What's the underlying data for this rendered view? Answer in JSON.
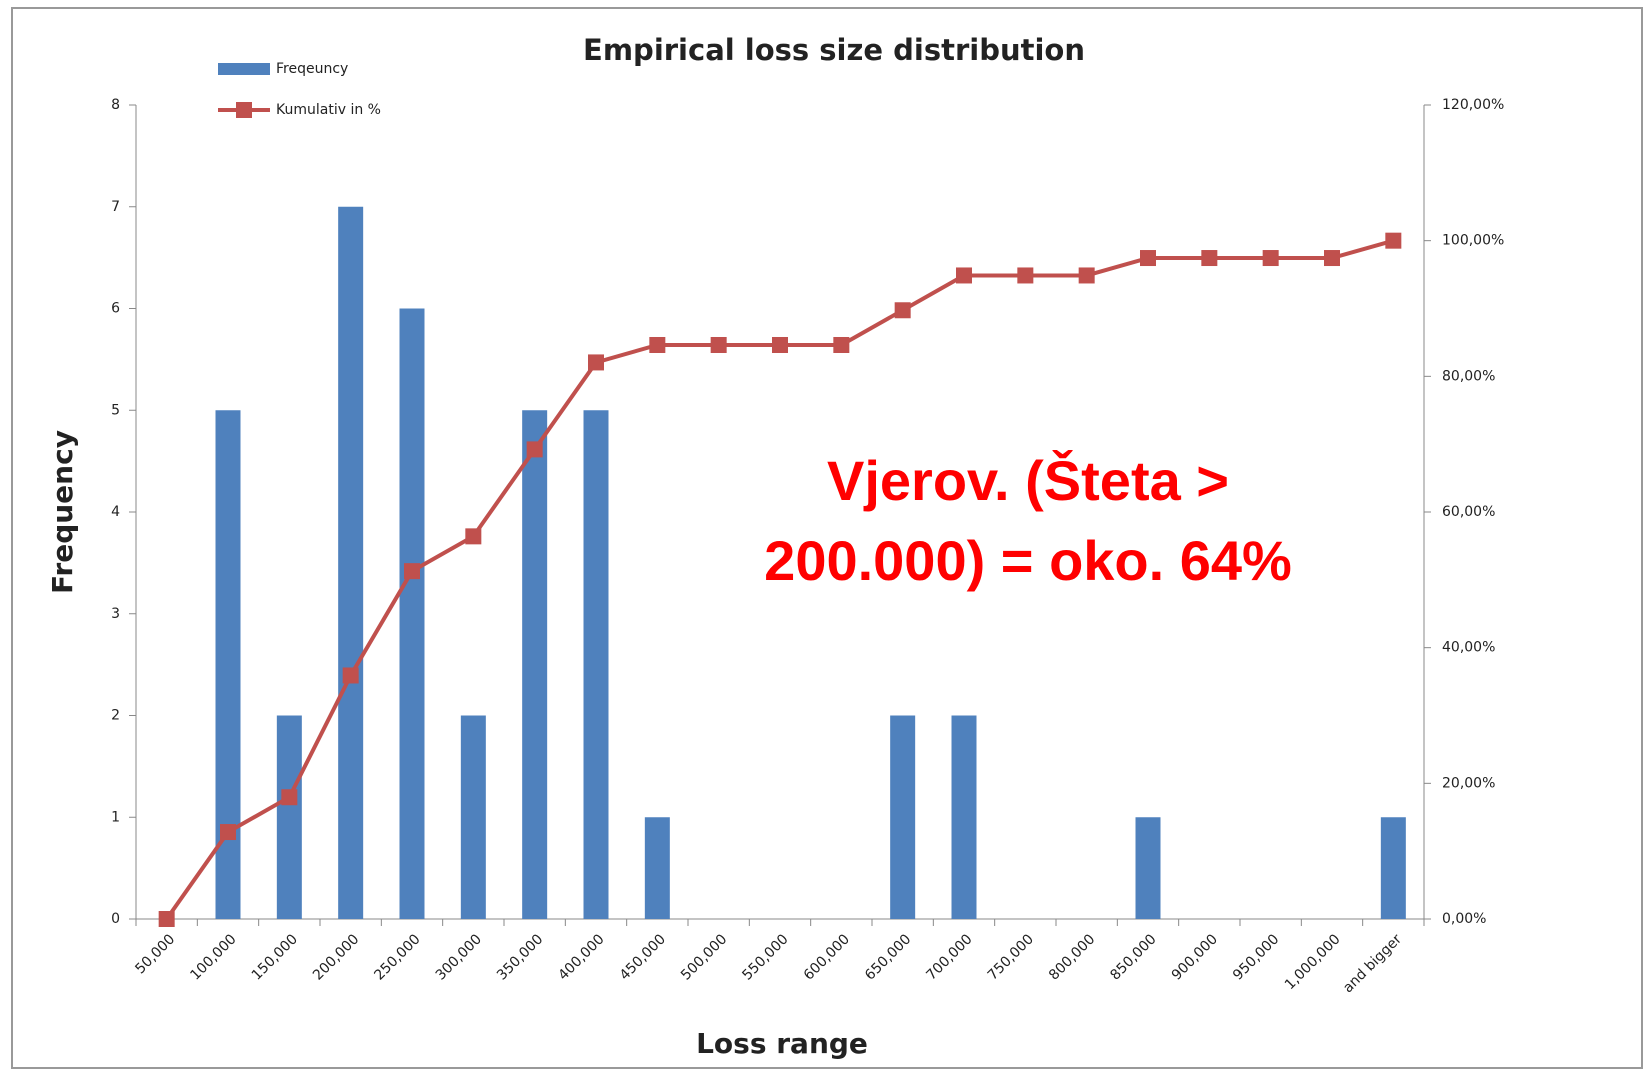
{
  "chart_data": {
    "type": "bar_line",
    "title": "Empirical loss size distribution",
    "x_label": "Loss range",
    "y_label": "Frequency",
    "annotation": [
      "Vjerov. (Šteta >",
      "200.000) = oko. 64%"
    ],
    "categories": [
      "50,000",
      "100,000",
      "150,000",
      "200,000",
      "250,000",
      "300,000",
      "350,000",
      "400,000",
      "450,000",
      "500,000",
      "550,000",
      "600,000",
      "650,000",
      "700,000",
      "750,000",
      "800,000",
      "850,000",
      "900,000",
      "950,000",
      "1,000,000",
      "and bigger"
    ],
    "series": [
      {
        "name": "Freqeuncy",
        "type": "bar",
        "color": "#4f81bd",
        "axis": "y",
        "values": [
          0,
          5,
          2,
          7,
          6,
          2,
          5,
          5,
          1,
          0,
          0,
          0,
          2,
          2,
          0,
          0,
          1,
          0,
          0,
          0,
          1
        ]
      },
      {
        "name": "Kumulativ in %",
        "type": "line",
        "color": "#c0504d",
        "axis": "y2",
        "values": [
          0,
          12.82,
          17.95,
          35.9,
          51.28,
          56.41,
          69.23,
          82.05,
          84.62,
          84.62,
          84.62,
          84.62,
          89.74,
          94.87,
          94.87,
          94.87,
          97.44,
          97.44,
          97.44,
          97.44,
          100
        ]
      }
    ],
    "ylim": [
      0,
      8
    ],
    "yticks": [
      0,
      1,
      2,
      3,
      4,
      5,
      6,
      7,
      8
    ],
    "y2lim": [
      0,
      120
    ],
    "y2ticks": [
      {
        "value": 0,
        "label": "0,00%"
      },
      {
        "value": 20,
        "label": "20,00%"
      },
      {
        "value": 40,
        "label": "40,00%"
      },
      {
        "value": 60,
        "label": "60,00%"
      },
      {
        "value": 80,
        "label": "80,00%"
      },
      {
        "value": 100,
        "label": "100,00%"
      },
      {
        "value": 120,
        "label": "120,00%"
      }
    ],
    "legend": "top-left"
  }
}
